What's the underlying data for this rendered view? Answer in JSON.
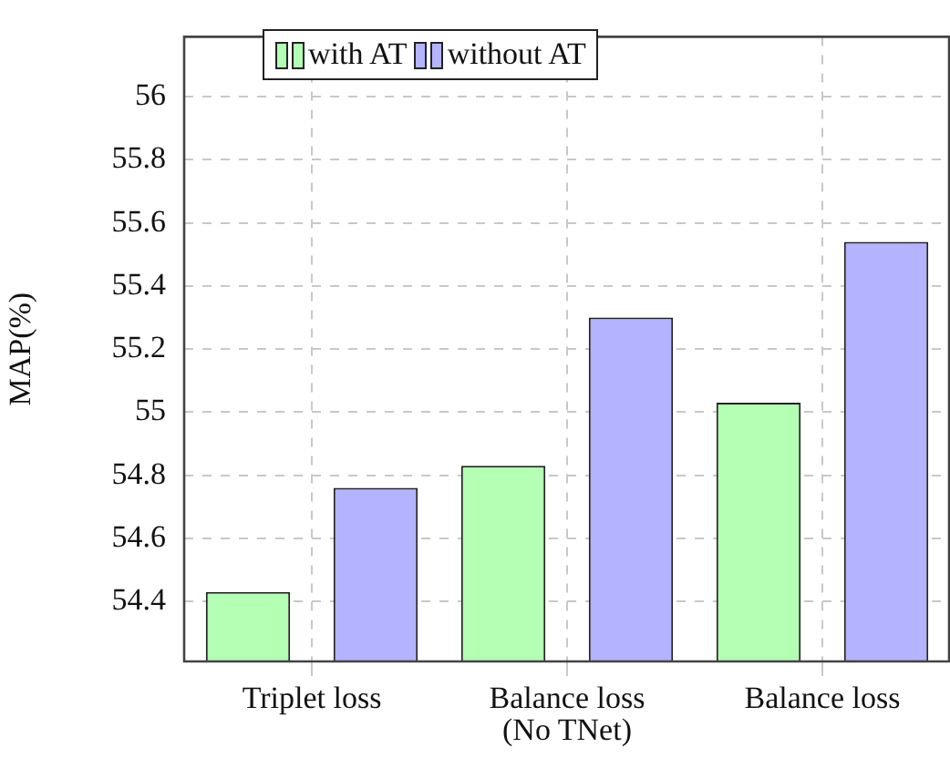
{
  "chart_data": {
    "type": "bar",
    "ylabel": "MAP(%)",
    "categories": [
      "Triplet loss",
      "Balance loss (No TNet)",
      "Balance loss"
    ],
    "series": [
      {
        "name": "with AT",
        "color": "#b3ffb3",
        "values": [
          54.43,
          54.83,
          55.03
        ]
      },
      {
        "name": "without AT",
        "color": "#b3b3ff",
        "values": [
          54.76,
          55.3,
          55.54
        ]
      }
    ],
    "ylim": [
      54.21,
      56.19
    ],
    "yticks": [
      54.4,
      54.6,
      54.8,
      55,
      55.2,
      55.4,
      55.6,
      55.8,
      56
    ],
    "grid": true,
    "legend": "top left"
  }
}
